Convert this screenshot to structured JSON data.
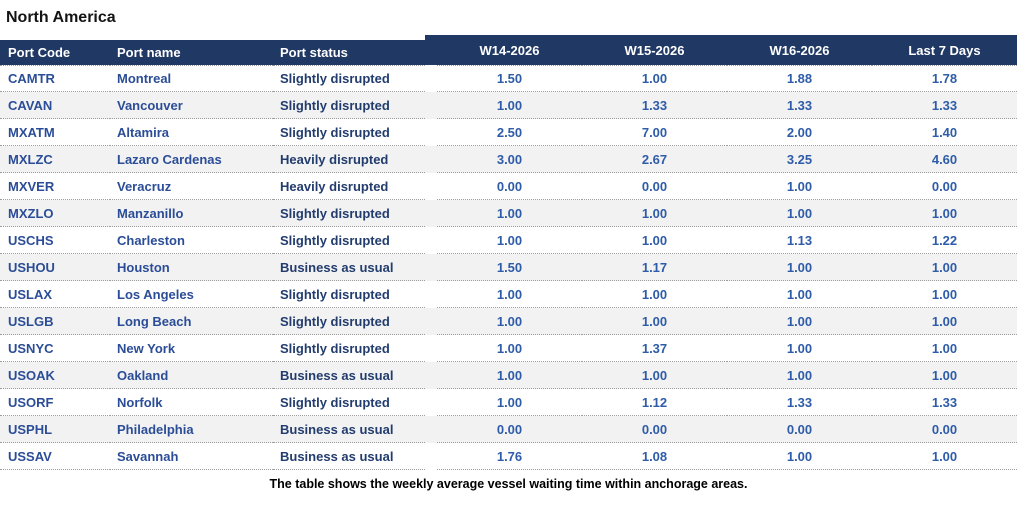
{
  "title": "North America",
  "columns": {
    "port_code": "Port Code",
    "port_name": "Port name",
    "port_status": "Port status",
    "weeks": [
      "W14-2026",
      "W15-2026",
      "W16-2026",
      "Last 7 Days"
    ]
  },
  "rows": [
    {
      "code": "CAMTR",
      "name": "Montreal",
      "status": "Slightly disrupted",
      "values": [
        "1.50",
        "1.00",
        "1.88",
        "1.78"
      ]
    },
    {
      "code": "CAVAN",
      "name": "Vancouver",
      "status": "Slightly disrupted",
      "values": [
        "1.00",
        "1.33",
        "1.33",
        "1.33"
      ]
    },
    {
      "code": "MXATM",
      "name": "Altamira",
      "status": "Slightly disrupted",
      "values": [
        "2.50",
        "7.00",
        "2.00",
        "1.40"
      ]
    },
    {
      "code": "MXLZC",
      "name": "Lazaro Cardenas",
      "status": "Heavily disrupted",
      "values": [
        "3.00",
        "2.67",
        "3.25",
        "4.60"
      ]
    },
    {
      "code": "MXVER",
      "name": "Veracruz",
      "status": "Heavily disrupted",
      "values": [
        "0.00",
        "0.00",
        "1.00",
        "0.00"
      ]
    },
    {
      "code": "MXZLO",
      "name": "Manzanillo",
      "status": "Slightly disrupted",
      "values": [
        "1.00",
        "1.00",
        "1.00",
        "1.00"
      ]
    },
    {
      "code": "USCHS",
      "name": "Charleston",
      "status": "Slightly disrupted",
      "values": [
        "1.00",
        "1.00",
        "1.13",
        "1.22"
      ]
    },
    {
      "code": "USHOU",
      "name": "Houston",
      "status": "Business as usual",
      "values": [
        "1.50",
        "1.17",
        "1.00",
        "1.00"
      ]
    },
    {
      "code": "USLAX",
      "name": "Los Angeles",
      "status": "Slightly disrupted",
      "values": [
        "1.00",
        "1.00",
        "1.00",
        "1.00"
      ]
    },
    {
      "code": "USLGB",
      "name": "Long Beach",
      "status": "Slightly disrupted",
      "values": [
        "1.00",
        "1.00",
        "1.00",
        "1.00"
      ]
    },
    {
      "code": "USNYC",
      "name": "New York",
      "status": "Slightly disrupted",
      "values": [
        "1.00",
        "1.37",
        "1.00",
        "1.00"
      ]
    },
    {
      "code": "USOAK",
      "name": "Oakland",
      "status": "Business as usual",
      "values": [
        "1.00",
        "1.00",
        "1.00",
        "1.00"
      ]
    },
    {
      "code": "USORF",
      "name": "Norfolk",
      "status": "Slightly disrupted",
      "values": [
        "1.00",
        "1.12",
        "1.33",
        "1.33"
      ]
    },
    {
      "code": "USPHL",
      "name": "Philadelphia",
      "status": "Business as usual",
      "values": [
        "0.00",
        "0.00",
        "0.00",
        "0.00"
      ]
    },
    {
      "code": "USSAV",
      "name": "Savannah",
      "status": "Business as usual",
      "values": [
        "1.76",
        "1.08",
        "1.00",
        "1.00"
      ]
    }
  ],
  "caption": "The table shows the weekly average vessel waiting time within anchorage areas.",
  "colors": {
    "header_bg": "#1f3864",
    "header_text": "#ffffff",
    "row_alt_bg": "#f2f2f2",
    "port_text": "#2b4d97",
    "status_text": "#223c6e",
    "value_text": "#2e5ca9",
    "separator": "#9d9d9d"
  }
}
